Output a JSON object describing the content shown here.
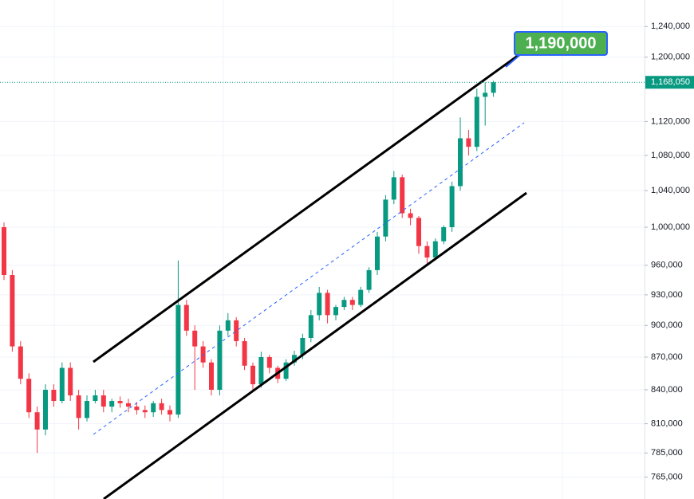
{
  "chart_data": {
    "type": "candlestick",
    "log_scale": true,
    "grid": true,
    "ylim": [
      747200,
      1275800
    ],
    "yticks": [
      {
        "value": 1240000,
        "label": "1,240,000"
      },
      {
        "value": 1200000,
        "label": "1,200,000"
      },
      {
        "value": 1120000,
        "label": "1,120,000"
      },
      {
        "value": 1080000,
        "label": "1,080,000"
      },
      {
        "value": 1040000,
        "label": "1,040,000"
      },
      {
        "value": 1000000,
        "label": "1,000,000"
      },
      {
        "value": 960000,
        "label": "960,000"
      },
      {
        "value": 930000,
        "label": "930,000"
      },
      {
        "value": 900000,
        "label": "900,000"
      },
      {
        "value": 870000,
        "label": "870,000"
      },
      {
        "value": 840000,
        "label": "840,000"
      },
      {
        "value": 810000,
        "label": "810,000"
      },
      {
        "value": 785000,
        "label": "785,000"
      },
      {
        "value": 765000,
        "label": "765,000"
      }
    ],
    "up_color": "#089981",
    "down_color": "#f23645",
    "last_price": {
      "value": 1168050,
      "label": "1,168,050"
    },
    "annotation": "1,190,000",
    "open": [
      1000000,
      950000,
      880000,
      850000,
      820000,
      805000,
      840000,
      830000,
      860000,
      835000,
      815000,
      830000,
      835000,
      825000,
      830000,
      828000,
      825000,
      822000,
      820000,
      828000,
      822000,
      818000,
      920000,
      895000,
      880000,
      865000,
      840000,
      895000,
      905000,
      885000,
      862000,
      845000,
      870000,
      860000,
      850000,
      865000,
      872000,
      888000,
      910000,
      932000,
      910000,
      918000,
      925000,
      920000,
      935000,
      955000,
      990000,
      1030000,
      1055000,
      1015000,
      1010000,
      980000,
      968000,
      985000,
      1000000,
      1045000,
      1100000,
      1090000,
      1150000,
      1155000
    ],
    "high": [
      1005000,
      955000,
      885000,
      855000,
      825000,
      845000,
      845000,
      865000,
      865000,
      840000,
      835000,
      840000,
      840000,
      832000,
      834000,
      832000,
      829000,
      826000,
      830000,
      832000,
      826000,
      965000,
      925000,
      900000,
      885000,
      868000,
      900000,
      912000,
      908000,
      888000,
      865000,
      875000,
      872000,
      862000,
      868000,
      876000,
      892000,
      915000,
      938000,
      935000,
      920000,
      928000,
      928000,
      938000,
      958000,
      995000,
      1035000,
      1062000,
      1058000,
      1020000,
      1012000,
      985000,
      988000,
      1002000,
      1050000,
      1125000,
      1110000,
      1160000,
      1168000,
      1170000
    ],
    "low": [
      945000,
      875000,
      845000,
      815000,
      785000,
      800000,
      825000,
      828000,
      830000,
      805000,
      812000,
      828000,
      820000,
      820000,
      824000,
      820000,
      818000,
      815000,
      816000,
      818000,
      812000,
      815000,
      890000,
      840000,
      860000,
      835000,
      835000,
      890000,
      880000,
      858000,
      840000,
      842000,
      855000,
      846000,
      848000,
      862000,
      868000,
      884000,
      905000,
      902000,
      905000,
      915000,
      915000,
      918000,
      932000,
      950000,
      985000,
      1025000,
      1010000,
      1002000,
      972000,
      962000,
      965000,
      982000,
      995000,
      1040000,
      1080000,
      1085000,
      1115000,
      1150000
    ],
    "close": [
      950000,
      880000,
      850000,
      820000,
      805000,
      840000,
      830000,
      860000,
      835000,
      815000,
      830000,
      835000,
      825000,
      830000,
      828000,
      825000,
      822000,
      820000,
      828000,
      822000,
      818000,
      920000,
      895000,
      880000,
      865000,
      840000,
      895000,
      905000,
      885000,
      862000,
      845000,
      870000,
      860000,
      850000,
      865000,
      872000,
      888000,
      910000,
      932000,
      910000,
      918000,
      925000,
      920000,
      935000,
      955000,
      990000,
      1030000,
      1055000,
      1015000,
      1010000,
      980000,
      968000,
      985000,
      1000000,
      1045000,
      1100000,
      1090000,
      1150000,
      1155000,
      1168050
    ]
  }
}
